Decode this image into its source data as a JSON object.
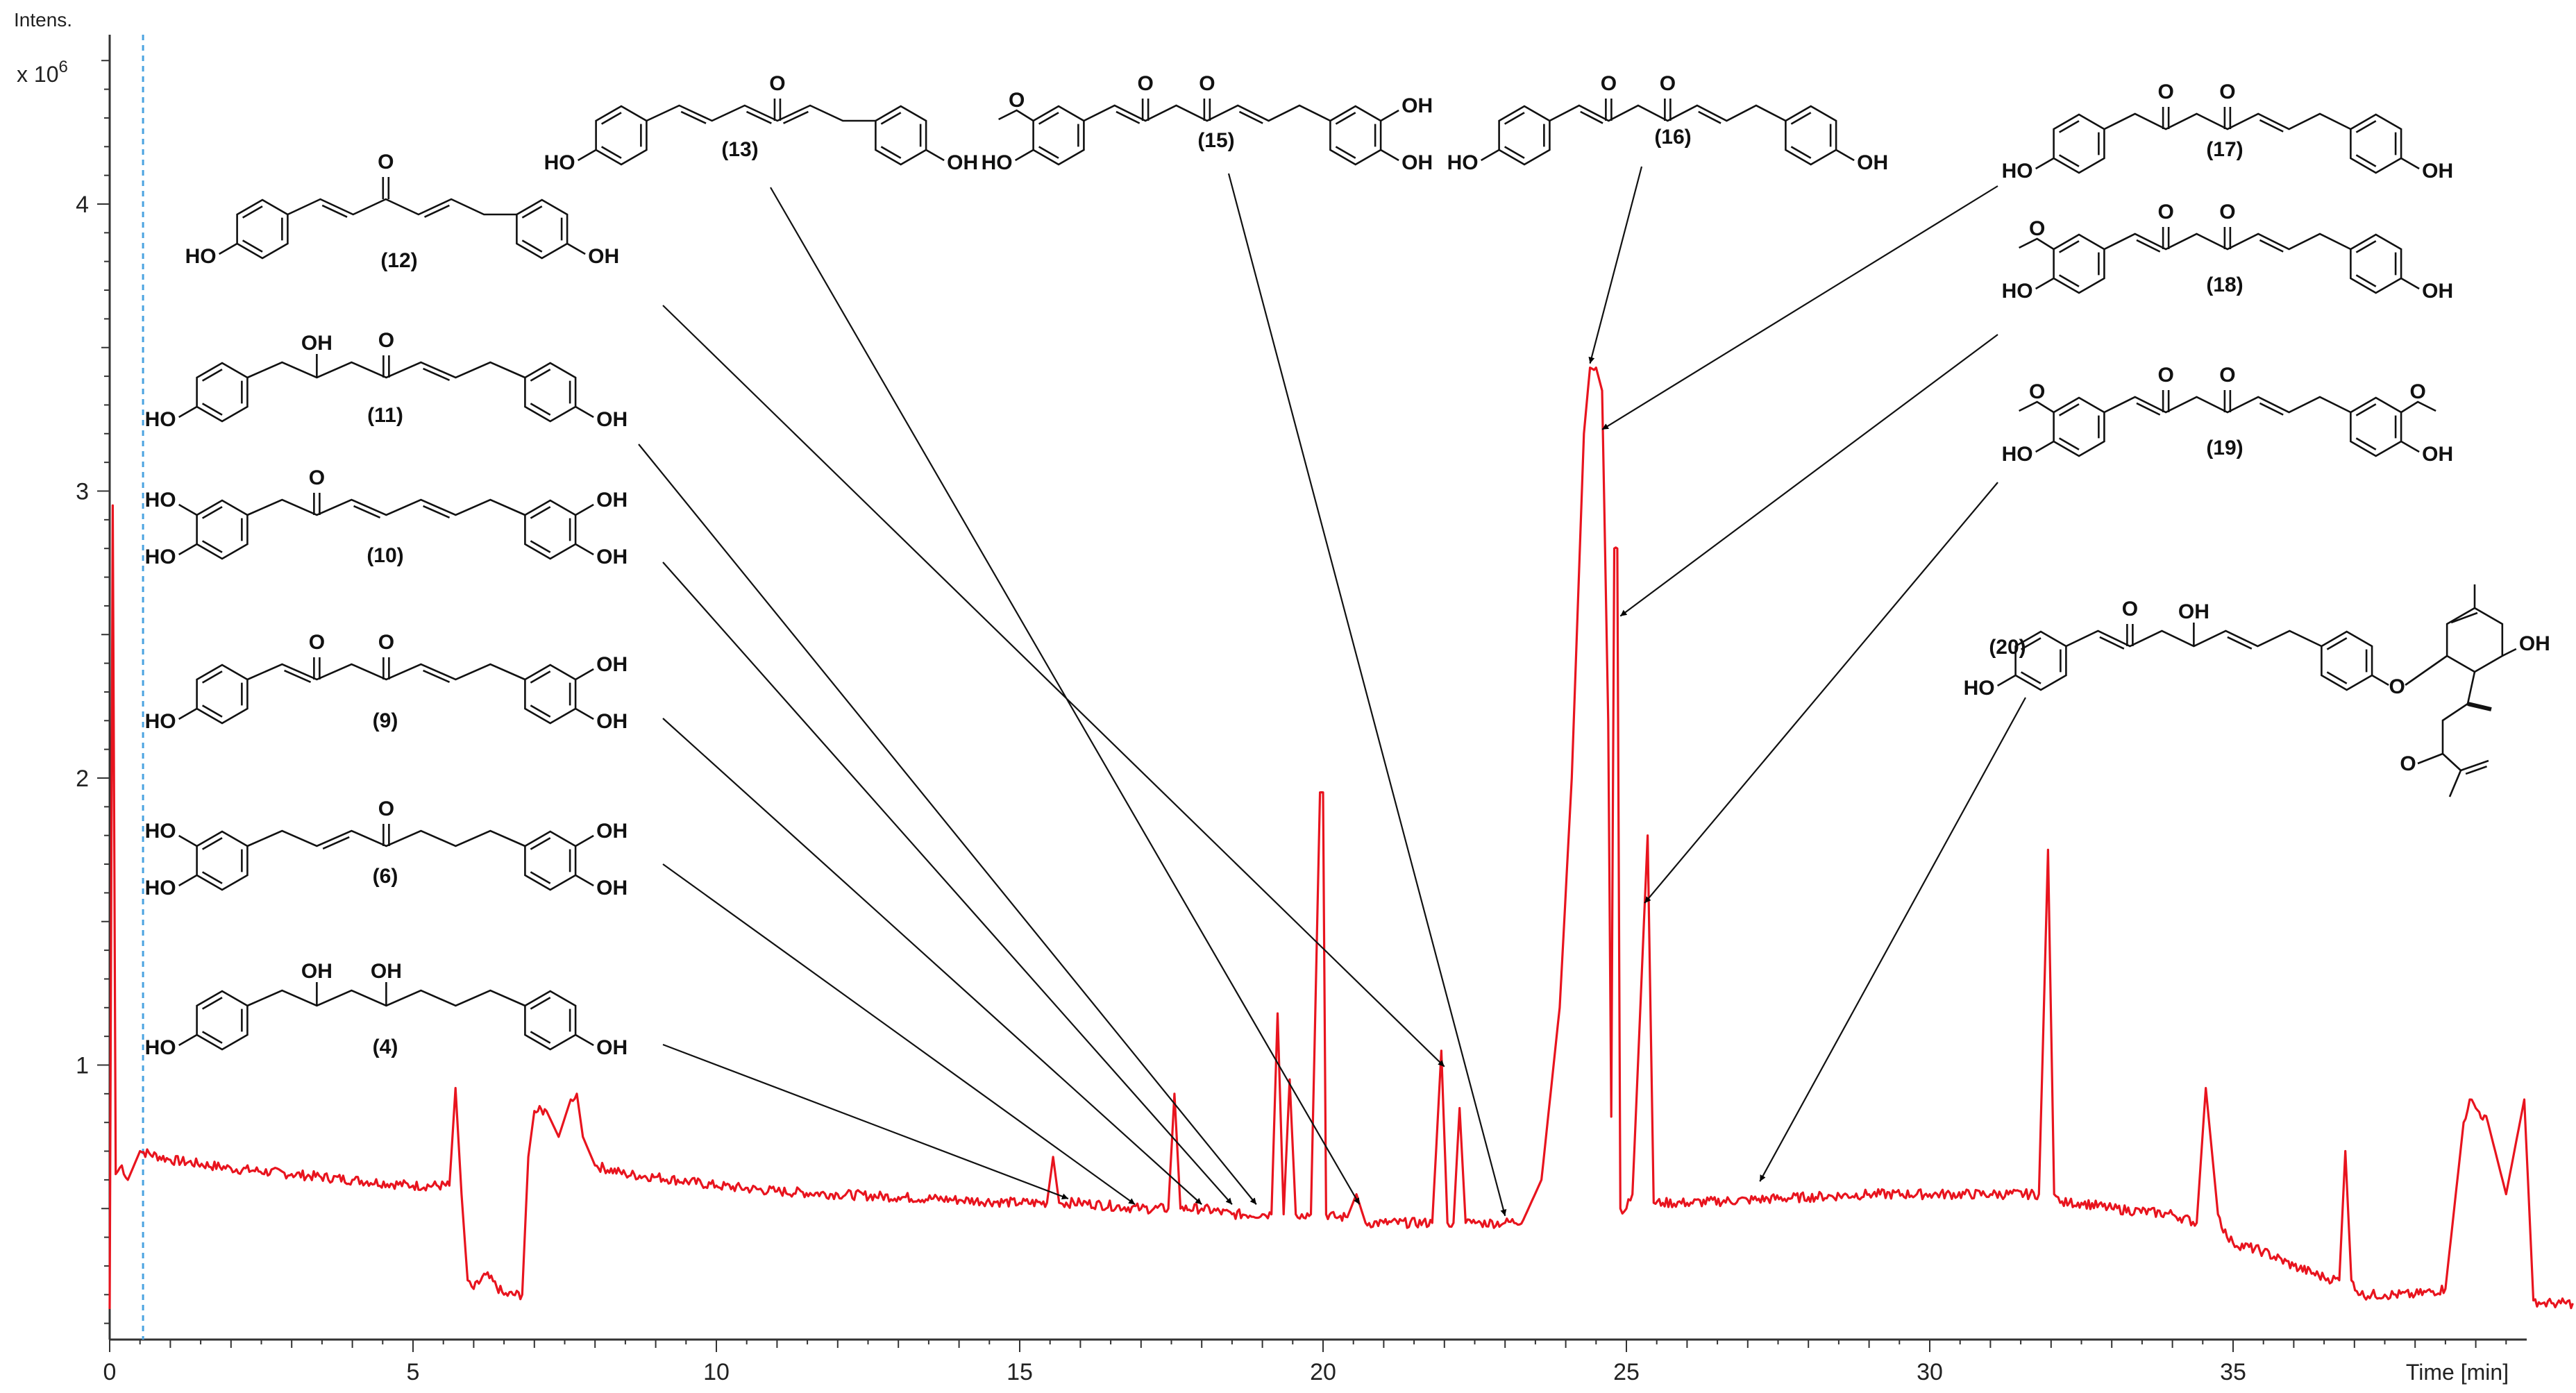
{
  "chart_data": {
    "type": "line",
    "title": "",
    "xlabel": "Time [min]",
    "ylabel": "Intens.",
    "y_multiplier": "x 10^6",
    "y_multiplier_base": "x 10",
    "y_multiplier_exp": "6",
    "xlim": [
      0,
      40.0
    ],
    "ylim": [
      0,
      4.5
    ],
    "x_ticks": [
      0,
      5,
      10,
      15,
      20,
      25,
      30,
      35
    ],
    "x_tick_labels": [
      "0",
      "5",
      "10",
      "15",
      "20",
      "25",
      "30",
      "35"
    ],
    "y_ticks": [
      1,
      2,
      3,
      4
    ],
    "y_tick_labels": [
      "1",
      "2",
      "3",
      "4"
    ],
    "grid": false,
    "marker_line_x": 0.55,
    "series": [
      {
        "color": "#e8141e",
        "x": [
          0.0,
          0.05,
          0.1,
          0.2,
          0.3,
          0.5,
          1.0,
          2.0,
          3.0,
          4.0,
          5.0,
          5.6,
          5.7,
          5.8,
          5.9,
          6.0,
          6.2,
          6.5,
          6.8,
          6.9,
          7.0,
          7.2,
          7.4,
          7.6,
          7.7,
          7.8,
          8.0,
          8.5,
          9.0,
          10.0,
          11.0,
          12.0,
          13.0,
          14.0,
          15.0,
          15.45,
          15.55,
          15.65,
          16.0,
          17.0,
          17.45,
          17.55,
          17.65,
          18.0,
          18.5,
          19.0,
          19.15,
          19.25,
          19.35,
          19.45,
          19.55,
          19.65,
          19.8,
          19.95,
          20.0,
          20.05,
          20.2,
          20.4,
          20.55,
          20.7,
          21.0,
          21.8,
          21.95,
          22.05,
          22.15,
          22.25,
          22.35,
          22.45,
          22.6,
          23.0,
          23.3,
          23.6,
          23.9,
          24.1,
          24.3,
          24.4,
          24.5,
          24.6,
          24.7,
          24.75,
          24.8,
          24.85,
          24.9,
          25.0,
          25.1,
          25.2,
          25.35,
          25.45,
          25.6,
          26.0,
          27.0,
          28.0,
          29.0,
          30.0,
          31.0,
          31.8,
          31.95,
          32.05,
          32.15,
          32.3,
          32.5,
          33.0,
          34.0,
          34.4,
          34.55,
          34.75,
          34.9,
          35.0,
          35.5,
          36.0,
          36.5,
          36.75,
          36.85,
          36.95,
          37.1,
          37.5,
          38.0,
          38.5,
          38.8,
          38.9,
          39.0,
          39.2,
          39.5,
          39.8,
          39.95,
          40.1,
          40.25,
          40.4,
          40.6
        ],
        "values": [
          0.15,
          2.95,
          0.62,
          0.65,
          0.6,
          0.7,
          0.67,
          0.64,
          0.62,
          0.6,
          0.58,
          0.58,
          0.92,
          0.55,
          0.25,
          0.22,
          0.27,
          0.2,
          0.2,
          0.68,
          0.84,
          0.84,
          0.75,
          0.88,
          0.9,
          0.75,
          0.65,
          0.62,
          0.61,
          0.58,
          0.56,
          0.55,
          0.54,
          0.53,
          0.52,
          0.52,
          0.68,
          0.52,
          0.52,
          0.5,
          0.5,
          0.9,
          0.5,
          0.5,
          0.48,
          0.48,
          0.48,
          1.18,
          0.48,
          0.95,
          0.48,
          0.48,
          0.48,
          1.95,
          1.95,
          0.48,
          0.47,
          0.47,
          0.55,
          0.45,
          0.45,
          0.45,
          1.05,
          0.45,
          0.45,
          0.85,
          0.45,
          0.45,
          0.45,
          0.45,
          0.46,
          0.6,
          1.2,
          2.0,
          3.2,
          3.43,
          3.43,
          3.35,
          2.2,
          0.82,
          2.8,
          2.8,
          0.5,
          0.5,
          0.55,
          1.05,
          1.8,
          0.52,
          0.52,
          0.52,
          0.53,
          0.54,
          0.55,
          0.55,
          0.55,
          0.55,
          1.75,
          0.55,
          0.52,
          0.52,
          0.52,
          0.5,
          0.48,
          0.45,
          0.92,
          0.48,
          0.4,
          0.38,
          0.35,
          0.3,
          0.26,
          0.25,
          0.7,
          0.25,
          0.2,
          0.2,
          0.2,
          0.22,
          0.8,
          0.88,
          0.85,
          0.8,
          0.55,
          0.88,
          0.18,
          0.17,
          0.17,
          0.17,
          0.17
        ]
      }
    ],
    "structures": [
      {
        "id": "(13)",
        "arrow_x": 20.6,
        "arrow_y": 0.5
      },
      {
        "id": "(15)",
        "arrow_x": 23.0,
        "arrow_y": 0.46
      },
      {
        "id": "(16)",
        "arrow_x": 24.4,
        "arrow_y": 3.43
      },
      {
        "id": "(17)",
        "arrow_x": 24.6,
        "arrow_y": 3.2
      },
      {
        "id": "(18)",
        "arrow_x": 24.9,
        "arrow_y": 2.55
      },
      {
        "id": "(19)",
        "arrow_x": 25.3,
        "arrow_y": 1.55
      },
      {
        "id": "(20)",
        "arrow_x": 27.2,
        "arrow_y": 0.58
      },
      {
        "id": "(12)",
        "arrow_x": 22.0,
        "arrow_y": 0.98
      },
      {
        "id": "(11)",
        "arrow_x": 18.9,
        "arrow_y": 0.5
      },
      {
        "id": "(10)",
        "arrow_x": 18.5,
        "arrow_y": 0.5
      },
      {
        "id": "(9)",
        "arrow_x": 18.0,
        "arrow_y": 0.5
      },
      {
        "id": "(6)",
        "arrow_x": 16.9,
        "arrow_y": 0.5
      },
      {
        "id": "(4)",
        "arrow_x": 15.8,
        "arrow_y": 0.52
      }
    ],
    "atom_labels": {
      "ho": "HO",
      "oh": "OH",
      "o": "O"
    }
  }
}
